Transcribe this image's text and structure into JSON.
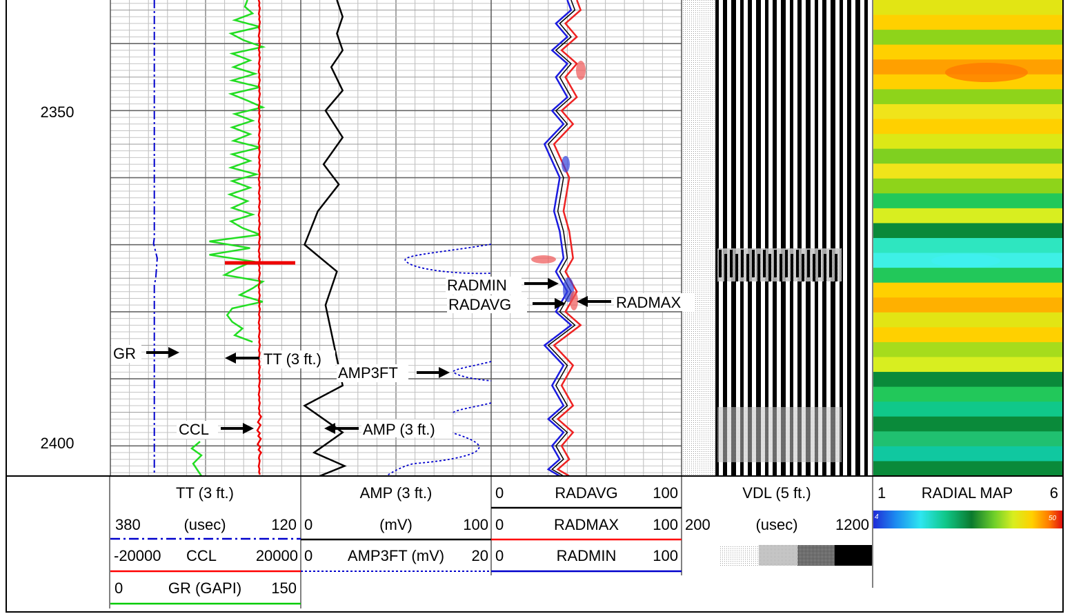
{
  "depth_labels": [
    "2350",
    "2400"
  ],
  "header": {
    "track1": {
      "tt": {
        "name": "TT (3 ft.)",
        "left": "380",
        "unit": "(usec)",
        "right": "120",
        "color": "#0000cc"
      },
      "ccl": {
        "left": "-20000",
        "name": "CCL",
        "right": "20000",
        "color": "#ff0000"
      },
      "gr": {
        "left": "0",
        "name": "GR (GAPI)",
        "right": "150",
        "color": "#00cc00"
      }
    },
    "track2": {
      "amp": {
        "name": "AMP (3 ft.)",
        "left": "0",
        "unit": "(mV)",
        "right": "100",
        "color": "#000000"
      },
      "amp3ft": {
        "left": "0",
        "name": "AMP3FT (mV)",
        "right": "20",
        "color": "#0000cc"
      }
    },
    "track3": {
      "radavg": {
        "left": "0",
        "name": "RADAVG",
        "right": "100",
        "color": "#000000"
      },
      "radmax": {
        "left": "0",
        "name": "RADMAX",
        "right": "100",
        "color": "#ff0000"
      },
      "radmin": {
        "left": "0",
        "name": "RADMIN",
        "right": "100",
        "color": "#0000cc"
      }
    },
    "vdl": {
      "name": "VDL (5 ft.)",
      "left": "200",
      "unit": "(usec)",
      "right": "1200"
    },
    "radial": {
      "left": "1",
      "name": "RADIAL MAP",
      "right": "6",
      "scale_min": "4",
      "scale_max": "50"
    }
  },
  "annotations": {
    "gr": "GR",
    "tt": "TT (3 ft.)",
    "ccl": "CCL",
    "amp3ft": "AMP3FT",
    "amp": "AMP (3 ft.)",
    "radmin": "RADMIN",
    "radavg": "RADAVG",
    "radmax": "RADMAX"
  },
  "chart_data": {
    "type": "line",
    "depth_range": [
      2333.5,
      2404.5
    ],
    "series": [
      {
        "name": "GR (GAPI)",
        "x_range": [
          0,
          150
        ],
        "x": [
          108,
          106,
          112,
          98,
          118,
          95,
          105,
          120,
          96,
          110,
          97,
          114,
          96,
          118,
          95,
          108,
          120,
          98,
          112,
          96,
          110,
          97,
          118,
          96,
          110,
          95,
          115,
          96,
          110,
          94,
          108,
          96,
          112,
          95,
          104,
          118,
          78,
          110,
          78,
          112,
          100,
          90,
          120,
          112,
          102,
          120,
          96,
          92,
          96,
          104,
          98,
          112
        ],
        "depth": [
          2333.5,
          2334.5,
          2335.5,
          2336.5,
          2337.5,
          2338.5,
          2339.5,
          2340.5,
          2341.5,
          2342.5,
          2343.5,
          2344.5,
          2345.5,
          2346.5,
          2347.5,
          2348.5,
          2349.5,
          2350.5,
          2351.5,
          2352.5,
          2353.5,
          2354.5,
          2355.5,
          2356.5,
          2357.5,
          2358.5,
          2359.5,
          2360.5,
          2361.5,
          2362.5,
          2363.5,
          2364.5,
          2365.5,
          2366.5,
          2367.5,
          2368.5,
          2369.5,
          2370.5,
          2371.5,
          2372.5,
          2373.5,
          2374.5,
          2375.5,
          2376.5,
          2377.5,
          2378.5,
          2379.5,
          2380.5,
          2381.5,
          2382.5,
          2383.5,
          2384.5
        ]
      },
      {
        "name": "TT (3 ft.)",
        "x_range": [
          380,
          120
        ],
        "x": [
          320,
          320,
          320,
          320,
          321,
          316,
          318,
          320,
          320,
          320,
          320
        ],
        "depth": [
          2333.5,
          2348,
          2360,
          2369,
          2369.8,
          2372,
          2375,
          2376,
          2390,
          2400,
          2404.5
        ]
      },
      {
        "name": "AMP (3 ft.)",
        "x_range": [
          0,
          100
        ],
        "x": [
          19,
          22,
          19,
          22,
          16,
          22,
          13,
          22,
          12,
          20,
          9,
          2,
          19,
          13,
          22,
          2,
          22,
          7,
          23,
          10
        ],
        "depth": [
          2333.5,
          2336,
          2338.5,
          2341,
          2343.5,
          2347,
          2350,
          2354,
          2358,
          2361,
          2365,
          2370,
          2374,
          2379,
          2391,
          2394,
          2398,
          2401,
          2403,
          2404.5
        ]
      },
      {
        "name": "RADAVG",
        "x_range": [
          0,
          100
        ],
        "x": [
          42,
          44,
          36,
          42,
          34,
          42,
          36,
          42,
          34,
          40,
          30,
          38,
          35,
          38,
          40,
          36,
          42,
          36,
          44,
          30,
          40,
          34,
          40,
          32,
          40,
          34,
          38,
          32,
          38
        ],
        "depth": [
          2333.5,
          2335,
          2337,
          2339,
          2341,
          2343,
          2345,
          2348,
          2350,
          2352,
          2355,
          2360,
          2365,
          2368,
          2372,
          2374,
          2377,
          2380,
          2382,
          2385,
          2388,
          2391,
          2394,
          2396,
          2398,
          2400,
          2402,
          2403.5,
          2404.5
        ]
      }
    ]
  }
}
